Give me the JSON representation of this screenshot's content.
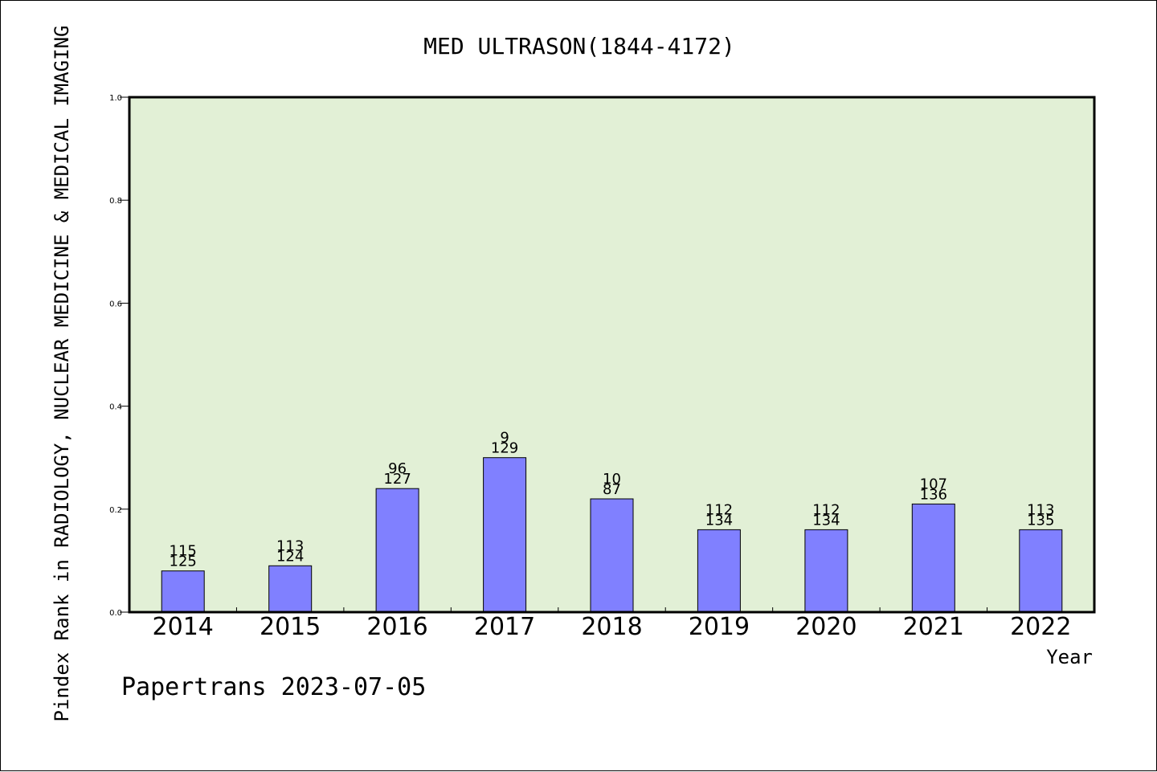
{
  "chart_data": {
    "type": "bar",
    "title": "MED ULTRASON(1844-4172)",
    "xlabel": "Year",
    "ylabel": "Pindex Rank in RADIOLOGY, NUCLEAR MEDICINE & MEDICAL IMAGING",
    "ylim": [
      0,
      1.0
    ],
    "yticks": [
      "0.0",
      "0.2",
      "0.4",
      "0.6",
      "0.8",
      "1.0"
    ],
    "categories": [
      "2014",
      "2015",
      "2016",
      "2017",
      "2018",
      "2019",
      "2020",
      "2021",
      "2022"
    ],
    "values": [
      0.08,
      0.09,
      0.24,
      0.3,
      0.22,
      0.16,
      0.16,
      0.21,
      0.16
    ],
    "labels_top": [
      "115",
      "113",
      "96",
      "9",
      "10",
      "112",
      "112",
      "107",
      "113"
    ],
    "labels_bottom": [
      "125",
      "124",
      "127",
      "129",
      "87",
      "134",
      "134",
      "136",
      "135"
    ],
    "grid": false,
    "colors": {
      "plot_background": "#e2f0d6",
      "bar": "#8080ff",
      "axis": "#000000"
    }
  },
  "footer": "Papertrans 2023-07-05"
}
